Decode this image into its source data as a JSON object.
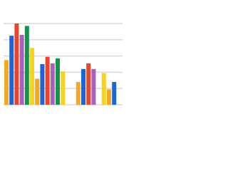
{
  "chart_data": {
    "type": "bar",
    "categories": [
      null,
      null,
      null,
      null,
      null,
      null,
      null,
      null,
      null,
      null,
      null,
      null,
      null,
      null,
      null,
      null,
      null,
      null,
      null,
      null,
      null,
      null
    ],
    "values": [
      2.75,
      4.25,
      5.0,
      4.3,
      4.85,
      3.5,
      1.6,
      2.5,
      2.95,
      2.55,
      2.85,
      2.05,
      null,
      null,
      1.4,
      2.2,
      2.55,
      2.2,
      null,
      1.95,
      0.95,
      1.4
    ],
    "colors": [
      "#f4a825",
      "#1f64d6",
      "#e8452c",
      "#aa5fba",
      "#13934b",
      "#f7d31e",
      "#f4a825",
      "#1f64d6",
      "#e8452c",
      "#aa5fba",
      "#13934b",
      "#f7d31e",
      null,
      null,
      "#f4a825",
      "#1f64d6",
      "#e8452c",
      "#aa5fba",
      null,
      "#f7d31e",
      "#f4a825",
      "#1f64d6"
    ],
    "ylim": [
      0,
      5
    ],
    "yticks": [
      0,
      1,
      2,
      3,
      4,
      5
    ],
    "grid": true
  }
}
